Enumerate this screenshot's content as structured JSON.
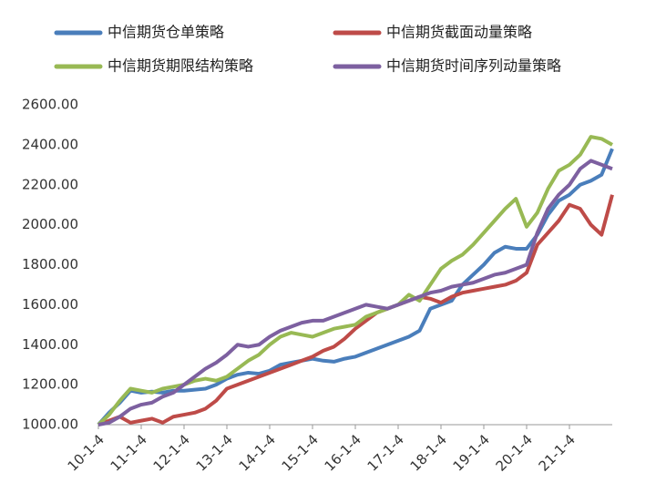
{
  "chart_data": {
    "type": "line",
    "categories": [
      "10-1-4",
      null,
      null,
      null,
      "11-1-4",
      null,
      null,
      null,
      "12-1-4",
      null,
      null,
      null,
      "13-1-4",
      null,
      null,
      null,
      "14-1-4",
      null,
      null,
      null,
      "15-1-4",
      null,
      null,
      null,
      "16-1-4",
      null,
      null,
      null,
      "17-1-4",
      null,
      null,
      null,
      "18-1-4",
      null,
      null,
      null,
      "19-1-4",
      null,
      null,
      null,
      "20-1-4",
      null,
      null,
      null,
      "21-1-4",
      null,
      null,
      null,
      null
    ],
    "series": [
      {
        "name": "中信期货仓单策略",
        "color": "#4a7ebb",
        "values": [
          1000,
          1060,
          1110,
          1170,
          1160,
          1165,
          1160,
          1170,
          1170,
          1175,
          1180,
          1200,
          1230,
          1250,
          1260,
          1255,
          1270,
          1300,
          1310,
          1320,
          1330,
          1320,
          1315,
          1330,
          1340,
          1360,
          1380,
          1400,
          1420,
          1440,
          1470,
          1580,
          1600,
          1620,
          1700,
          1750,
          1800,
          1860,
          1890,
          1880,
          1880,
          1950,
          2050,
          2120,
          2150,
          2200,
          2220,
          2250,
          2380
        ]
      },
      {
        "name": "中信期货截面动量策略",
        "color": "#be4b48",
        "values": [
          1000,
          1020,
          1040,
          1010,
          1020,
          1030,
          1010,
          1040,
          1050,
          1060,
          1080,
          1120,
          1180,
          1200,
          1220,
          1240,
          1260,
          1280,
          1300,
          1320,
          1340,
          1370,
          1390,
          1430,
          1480,
          1520,
          1560,
          1580,
          1600,
          1620,
          1640,
          1630,
          1610,
          1640,
          1660,
          1670,
          1680,
          1690,
          1700,
          1720,
          1760,
          1900,
          1960,
          2020,
          2100,
          2080,
          2000,
          1950,
          2150
        ]
      },
      {
        "name": "中信期货期限结构策略",
        "color": "#98b954",
        "values": [
          1000,
          1050,
          1120,
          1180,
          1170,
          1160,
          1180,
          1190,
          1200,
          1220,
          1230,
          1220,
          1240,
          1280,
          1320,
          1350,
          1400,
          1440,
          1460,
          1450,
          1440,
          1460,
          1480,
          1490,
          1500,
          1540,
          1560,
          1580,
          1600,
          1650,
          1620,
          1700,
          1780,
          1820,
          1850,
          1900,
          1960,
          2020,
          2080,
          2130,
          1990,
          2060,
          2180,
          2270,
          2300,
          2350,
          2440,
          2430,
          2400
        ]
      },
      {
        "name": "中信期货时间序列动量策略",
        "color": "#7d60a0",
        "values": [
          1000,
          1010,
          1040,
          1080,
          1100,
          1110,
          1140,
          1160,
          1200,
          1240,
          1280,
          1310,
          1350,
          1400,
          1390,
          1400,
          1440,
          1470,
          1490,
          1510,
          1520,
          1520,
          1540,
          1560,
          1580,
          1600,
          1590,
          1580,
          1600,
          1620,
          1640,
          1660,
          1670,
          1690,
          1700,
          1710,
          1730,
          1750,
          1760,
          1780,
          1800,
          1960,
          2080,
          2150,
          2200,
          2280,
          2320,
          2300,
          2280
        ]
      }
    ],
    "ylim": [
      1000,
      2600
    ],
    "yticks": [
      {
        "value": 1000,
        "label": "1000.00"
      },
      {
        "value": 1200,
        "label": "1200.00"
      },
      {
        "value": 1400,
        "label": "1400.00"
      },
      {
        "value": 1600,
        "label": "1600.00"
      },
      {
        "value": 1800,
        "label": "1800.00"
      },
      {
        "value": 2000,
        "label": "2000.00"
      },
      {
        "value": 2200,
        "label": "2200.00"
      },
      {
        "value": 2400,
        "label": "2400.00"
      },
      {
        "value": 2600,
        "label": "2600.00"
      }
    ],
    "grid": false
  }
}
